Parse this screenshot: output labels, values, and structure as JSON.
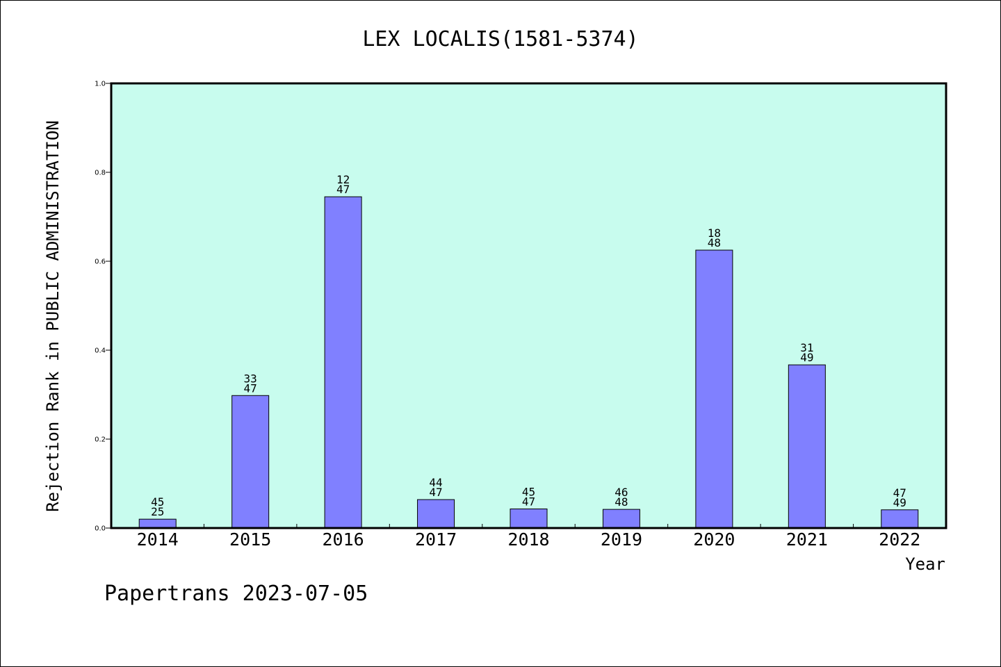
{
  "chart_data": {
    "type": "bar",
    "title": "LEX LOCALIS(1581-5374)",
    "xlabel": "Year",
    "ylabel": "Rejection Rank in PUBLIC ADMINISTRATION",
    "ylim": [
      0,
      1.0
    ],
    "yticks": [
      "0.0",
      "0.2",
      "0.4",
      "0.6",
      "0.8",
      "1.0"
    ],
    "categories": [
      "2014",
      "2015",
      "2016",
      "2017",
      "2018",
      "2019",
      "2020",
      "2021",
      "2022"
    ],
    "values": [
      0.02,
      0.298,
      0.745,
      0.064,
      0.043,
      0.042,
      0.625,
      0.367,
      0.041
    ],
    "bar_labels_top": [
      "45",
      "33",
      "12",
      "44",
      "45",
      "46",
      "18",
      "31",
      "47"
    ],
    "bar_labels_bottom": [
      "25",
      "47",
      "47",
      "47",
      "47",
      "48",
      "48",
      "49",
      "49"
    ],
    "colors": {
      "plot_background": "#c8fcee",
      "bar_fill": "#8080ff",
      "bar_stroke": "#000000"
    },
    "grid": false
  },
  "footer": {
    "text": "Papertrans 2023-07-05"
  }
}
